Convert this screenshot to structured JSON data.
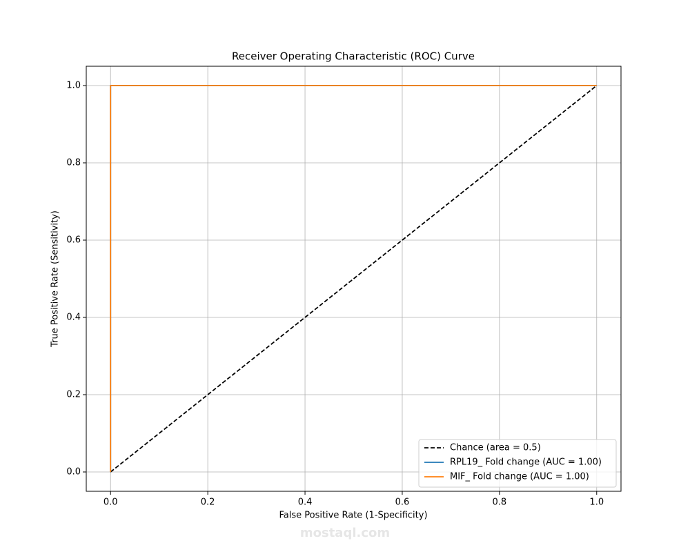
{
  "chart_data": {
    "type": "line",
    "title": "Receiver Operating Characteristic (ROC) Curve",
    "xlabel": "False Positive Rate (1-Specificity)",
    "ylabel": "True Positive Rate (Sensitivity)",
    "xlim": [
      -0.05,
      1.05
    ],
    "ylim": [
      -0.05,
      1.05
    ],
    "xticks": [
      {
        "value": 0,
        "label": "0.0"
      },
      0.2,
      0.4,
      0.6,
      0.8,
      {
        "value": 1,
        "label": "1.0"
      }
    ],
    "yticks": [
      {
        "value": 0,
        "label": "0.0"
      },
      0.2,
      0.4,
      0.6,
      0.8,
      {
        "value": 1,
        "label": "1.0"
      }
    ],
    "grid": true,
    "legend": "lower right",
    "series": [
      {
        "name": "Chance (area = 0.5)",
        "color": "#000000",
        "linestyle": "dashed",
        "x": [
          0,
          1
        ],
        "values": [
          0,
          1
        ]
      },
      {
        "name": "RPL19_ Fold change (AUC = 1.00)",
        "color": "#1f77b4",
        "linestyle": "solid",
        "x": [
          0,
          0,
          1
        ],
        "values": [
          0,
          1,
          1
        ]
      },
      {
        "name": "MIF_ Fold change (AUC = 1.00)",
        "color": "#ff7f0e",
        "linestyle": "solid",
        "x": [
          0,
          0,
          1
        ],
        "values": [
          0,
          1,
          1
        ]
      }
    ],
    "watermark": "mostaql.com"
  }
}
